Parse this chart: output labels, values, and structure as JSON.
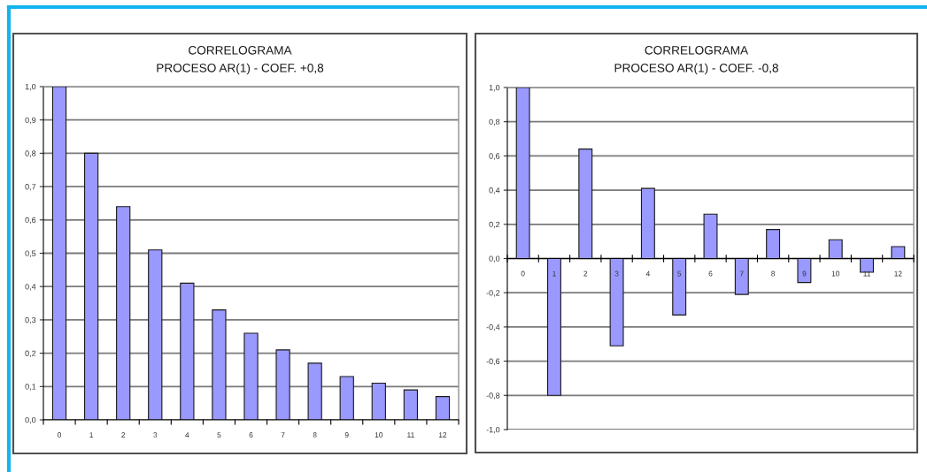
{
  "chart_data": [
    {
      "type": "bar",
      "title": "CORRELOGRAMA",
      "subtitle": "PROCESO AR(1) - COEF. +0,8",
      "categories": [
        "0",
        "1",
        "2",
        "3",
        "4",
        "5",
        "6",
        "7",
        "8",
        "9",
        "10",
        "11",
        "12"
      ],
      "values": [
        1.0,
        0.8,
        0.64,
        0.51,
        0.41,
        0.33,
        0.26,
        0.21,
        0.17,
        0.13,
        0.11,
        0.09,
        0.07
      ],
      "color": "#9999ff",
      "ylim": [
        0,
        1
      ],
      "yticks": [
        {
          "value": 0,
          "label": "0,0"
        },
        {
          "value": 0.1,
          "label": "0,1"
        },
        {
          "value": 0.2,
          "label": "0,2"
        },
        {
          "value": 0.3,
          "label": "0,3"
        },
        {
          "value": 0.4,
          "label": "0,4"
        },
        {
          "value": 0.5,
          "label": "0,5"
        },
        {
          "value": 0.6,
          "label": "0,6"
        },
        {
          "value": 0.7,
          "label": "0,7"
        },
        {
          "value": 0.8,
          "label": "0,8"
        },
        {
          "value": 0.9,
          "label": "0,9"
        },
        {
          "value": 1.0,
          "label": "1,0"
        }
      ],
      "grid": "y"
    },
    {
      "type": "bar",
      "title": "CORRELOGRAMA",
      "subtitle": "PROCESO AR(1) - COEF. -0,8",
      "categories": [
        "0",
        "1",
        "2",
        "3",
        "4",
        "5",
        "6",
        "7",
        "8",
        "9",
        "10",
        "11",
        "12"
      ],
      "values": [
        1.0,
        -0.8,
        0.64,
        -0.51,
        0.41,
        -0.33,
        0.26,
        -0.21,
        0.17,
        -0.14,
        0.11,
        -0.08,
        0.07
      ],
      "color": "#9999ff",
      "ylim": [
        -1,
        1
      ],
      "yticks": [
        {
          "value": -1.0,
          "label": "-1,0"
        },
        {
          "value": -0.8,
          "label": "-0,8"
        },
        {
          "value": -0.6,
          "label": "-0,6"
        },
        {
          "value": -0.4,
          "label": "-0,4"
        },
        {
          "value": -0.2,
          "label": "-0,2"
        },
        {
          "value": 0,
          "label": "0,0"
        },
        {
          "value": 0.2,
          "label": "0,2"
        },
        {
          "value": 0.4,
          "label": "0,4"
        },
        {
          "value": 0.6,
          "label": "0,6"
        },
        {
          "value": 0.8,
          "label": "0,8"
        },
        {
          "value": 1.0,
          "label": "1,0"
        }
      ],
      "grid": "y"
    }
  ]
}
